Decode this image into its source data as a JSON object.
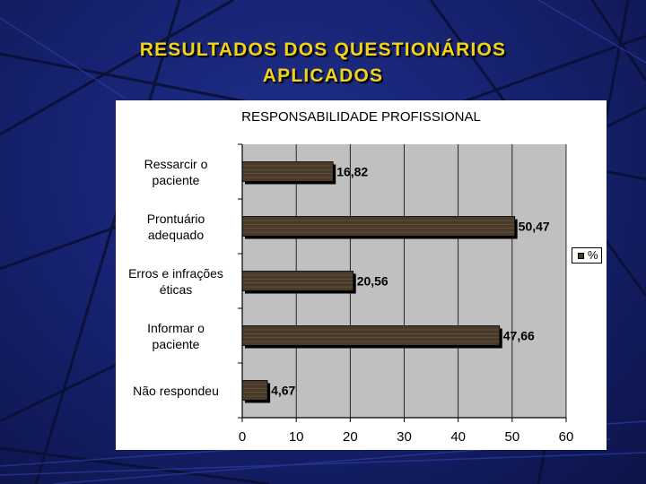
{
  "slide": {
    "title_line1": "RESULTADOS DOS QUESTIONÁRIOS",
    "title_line2": "APLICADOS"
  },
  "chart_data": {
    "type": "bar",
    "orientation": "horizontal",
    "title": "RESPONSABILIDADE PROFISSIONAL",
    "categories": [
      "Ressarcir o\npaciente",
      "Prontuário\nadequado",
      "Erros e infrações\néticas",
      "Informar o\npaciente",
      "Não respondeu"
    ],
    "series": [
      {
        "name": "%",
        "values": [
          16.82,
          50.47,
          20.56,
          47.66,
          4.67
        ]
      }
    ],
    "data_labels": [
      "16,82",
      "50,47",
      "20,56",
      "47,66",
      "4,67"
    ],
    "xlim": [
      0,
      60
    ],
    "xticks": [
      0,
      10,
      20,
      30,
      40,
      50,
      60
    ],
    "grid": true,
    "legend_position": "right",
    "colors": {
      "bar": "#4a3a2a",
      "plot_background": "#c0c0c0",
      "grid": "#000000"
    }
  }
}
